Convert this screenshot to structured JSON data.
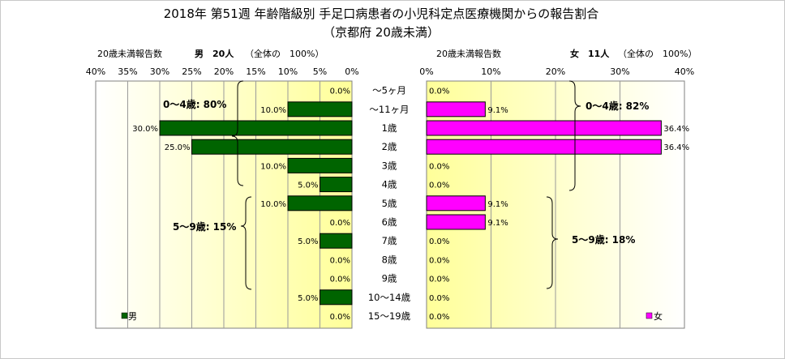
{
  "title_line1": "2018年 第51週 年齢階級別 手足口病患者の小児科定点医療機関からの報告割合",
  "title_line2": "（京都府 20歳未満）",
  "male": {
    "header_left": "20歳未満報告数",
    "header_count": "男　20人",
    "header_note": "（全体の　100%）",
    "legend": "男",
    "color": "#006400"
  },
  "female": {
    "header_left": "20歳未満報告数",
    "header_count": "女　11人",
    "header_note": "（全体の　100%）",
    "legend": "女",
    "color": "#ff00ff"
  },
  "chart_data": {
    "type": "bar",
    "categories": [
      "～5ヶ月",
      "～11ヶ月",
      "1歳",
      "2歳",
      "3歳",
      "4歳",
      "5歳",
      "6歳",
      "7歳",
      "8歳",
      "9歳",
      "10～14歳",
      "15～19歳"
    ],
    "series": [
      {
        "name": "男",
        "values": [
          0.0,
          10.0,
          30.0,
          25.0,
          10.0,
          5.0,
          10.0,
          0.0,
          5.0,
          0.0,
          0.0,
          5.0,
          0.0
        ],
        "labels": [
          "0.0%",
          "10.0%",
          "30.0%",
          "25.0%",
          "10.0%",
          "5.0%",
          "10.0%",
          "0.0%",
          "5.0%",
          "0.0%",
          "0.0%",
          "5.0%",
          "0.0%"
        ]
      },
      {
        "name": "女",
        "values": [
          0.0,
          9.1,
          36.4,
          36.4,
          0.0,
          0.0,
          9.1,
          9.1,
          0.0,
          0.0,
          0.0,
          0.0,
          0.0
        ],
        "labels": [
          "0.0%",
          "9.1%",
          "36.4%",
          "36.4%",
          "0.0%",
          "0.0%",
          "9.1%",
          "9.1%",
          "0.0%",
          "0.0%",
          "0.0%",
          "0.0%",
          "0.0%"
        ]
      }
    ],
    "male_axis": {
      "ticks": [
        40,
        35,
        30,
        25,
        20,
        15,
        10,
        5,
        0
      ],
      "tick_labels": [
        "40%",
        "35%",
        "30%",
        "25%",
        "20%",
        "15%",
        "10%",
        "5%",
        "0%"
      ],
      "xlim": [
        0,
        40
      ]
    },
    "female_axis": {
      "ticks": [
        0,
        10,
        20,
        30,
        40
      ],
      "tick_labels": [
        "0%",
        "10%",
        "20%",
        "30%",
        "40%"
      ],
      "xlim": [
        0,
        40
      ]
    },
    "annotations": {
      "male_0_4": "0～4歳: 80%",
      "male_5_9": "5～9歳: 15%",
      "female_0_4": "0～4歳: 82%",
      "female_5_9": "5～9歳: 18%"
    },
    "grid": true
  }
}
